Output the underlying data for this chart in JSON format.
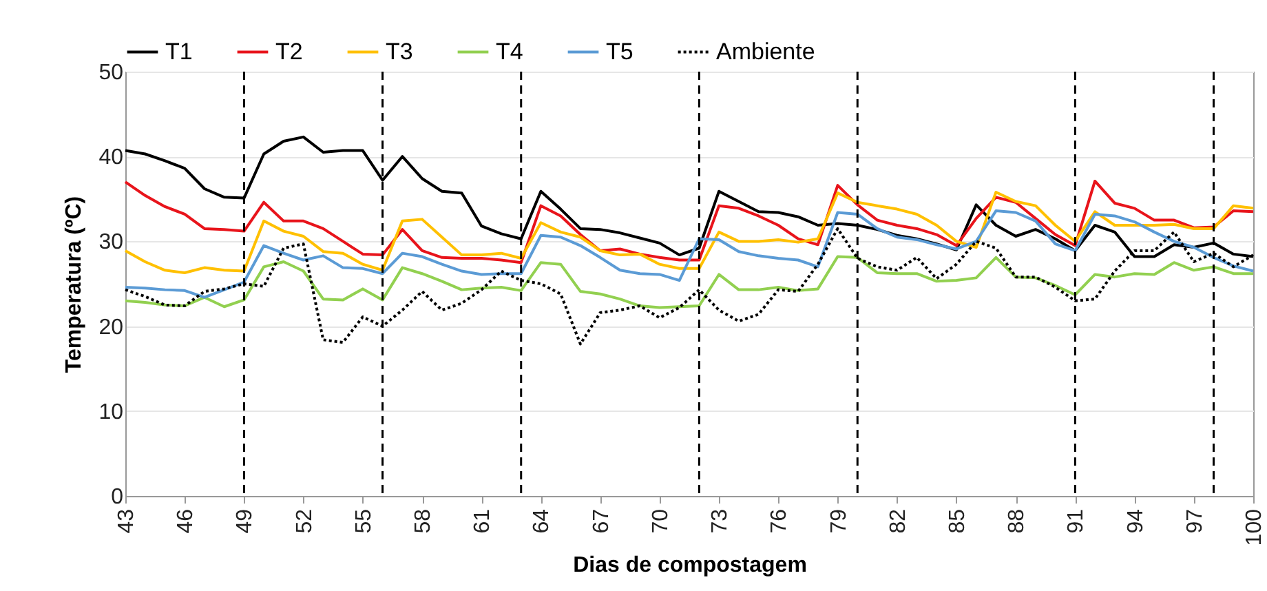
{
  "chart_data": {
    "type": "line",
    "xlabel": "Dias de compostagem",
    "ylabel": "Temperatura (ºC)",
    "x": [
      43,
      44,
      45,
      46,
      47,
      48,
      49,
      50,
      51,
      52,
      53,
      54,
      55,
      56,
      57,
      58,
      59,
      60,
      61,
      62,
      63,
      64,
      65,
      66,
      67,
      68,
      69,
      70,
      71,
      72,
      73,
      74,
      75,
      76,
      77,
      78,
      79,
      80,
      81,
      82,
      83,
      84,
      85,
      86,
      87,
      88,
      89,
      90,
      91,
      92,
      93,
      94,
      95,
      96,
      97,
      98,
      99,
      100
    ],
    "series": [
      {
        "name": "T1",
        "color": "#000000",
        "values": [
          40.7,
          40.3,
          39.5,
          38.6,
          36.2,
          35.2,
          35.1,
          40.3,
          41.8,
          42.3,
          40.5,
          40.7,
          40.7,
          37.2,
          40.0,
          37.4,
          35.9,
          35.7,
          31.8,
          30.9,
          30.3,
          35.9,
          33.8,
          31.5,
          31.4,
          31.0,
          30.4,
          29.8,
          28.4,
          29.2,
          35.9,
          34.7,
          33.5,
          33.4,
          32.9,
          31.9,
          32.1,
          31.9,
          31.4,
          30.7,
          30.3,
          29.7,
          29.0,
          34.3,
          31.9,
          30.6,
          31.4,
          30.3,
          28.9,
          31.9,
          31.1,
          28.2,
          28.2,
          29.6,
          29.3,
          29.8,
          28.5,
          28.2
        ]
      },
      {
        "name": "T2",
        "color": "#e8141b",
        "values": [
          37.0,
          35.4,
          34.1,
          33.2,
          31.5,
          31.4,
          31.2,
          34.6,
          32.4,
          32.4,
          31.5,
          30.0,
          28.5,
          28.4,
          31.4,
          28.9,
          28.1,
          28.0,
          28.0,
          27.8,
          27.5,
          34.2,
          33.0,
          30.8,
          28.9,
          29.1,
          28.5,
          28.1,
          27.8,
          27.8,
          34.2,
          33.9,
          33.0,
          31.9,
          30.3,
          29.6,
          36.6,
          34.3,
          32.5,
          31.9,
          31.5,
          30.8,
          29.5,
          32.7,
          35.2,
          34.6,
          32.7,
          30.8,
          29.5,
          37.1,
          34.5,
          33.9,
          32.5,
          32.5,
          31.6,
          31.7,
          33.6,
          33.5
        ]
      },
      {
        "name": "T3",
        "color": "#ffc000",
        "values": [
          28.9,
          27.6,
          26.6,
          26.3,
          26.9,
          26.6,
          26.5,
          32.4,
          31.2,
          30.6,
          28.8,
          28.6,
          27.3,
          26.6,
          32.4,
          32.6,
          30.5,
          28.4,
          28.4,
          28.6,
          28.0,
          32.2,
          31.1,
          30.5,
          28.9,
          28.4,
          28.5,
          27.3,
          26.8,
          26.8,
          31.1,
          30.0,
          30.0,
          30.2,
          29.9,
          30.3,
          35.7,
          34.6,
          34.2,
          33.8,
          33.2,
          31.9,
          30.0,
          29.3,
          35.8,
          34.7,
          34.2,
          31.9,
          30.0,
          33.5,
          31.9,
          31.9,
          31.9,
          32.0,
          31.5,
          31.5,
          34.2,
          33.9
        ]
      },
      {
        "name": "T4",
        "color": "#92d050",
        "values": [
          23.0,
          22.8,
          22.5,
          22.4,
          23.4,
          22.3,
          23.1,
          27.0,
          27.6,
          26.5,
          23.2,
          23.1,
          24.4,
          23.1,
          26.9,
          26.2,
          25.3,
          24.3,
          24.5,
          24.6,
          24.2,
          27.5,
          27.3,
          24.1,
          23.8,
          23.2,
          22.4,
          22.2,
          22.3,
          22.4,
          26.1,
          24.3,
          24.3,
          24.6,
          24.2,
          24.4,
          28.2,
          28.1,
          26.3,
          26.2,
          26.2,
          25.3,
          25.4,
          25.7,
          28.1,
          25.8,
          25.7,
          24.8,
          23.7,
          26.1,
          25.8,
          26.2,
          26.1,
          27.5,
          26.6,
          27.0,
          26.2,
          26.2
        ]
      },
      {
        "name": "T5",
        "color": "#5b9bd5",
        "values": [
          24.6,
          24.5,
          24.3,
          24.2,
          23.4,
          24.3,
          25.2,
          29.5,
          28.6,
          27.8,
          28.3,
          26.9,
          26.8,
          26.2,
          28.6,
          28.2,
          27.3,
          26.5,
          26.1,
          26.2,
          26.2,
          30.7,
          30.5,
          29.5,
          28.1,
          26.6,
          26.2,
          26.1,
          25.4,
          30.3,
          30.2,
          28.8,
          28.3,
          28.0,
          27.8,
          27.0,
          33.4,
          33.2,
          31.5,
          30.5,
          30.2,
          29.6,
          29.1,
          30.0,
          33.6,
          33.4,
          32.4,
          29.7,
          28.9,
          33.2,
          33.0,
          32.3,
          31.1,
          30.0,
          29.3,
          28.1,
          27.1,
          26.5
        ]
      },
      {
        "name": "Ambiente",
        "color": "#000000",
        "line_style": "dotted",
        "values": [
          24.3,
          23.5,
          22.5,
          22.4,
          24.1,
          24.4,
          25.0,
          24.7,
          29.2,
          29.7,
          18.4,
          18.1,
          21.1,
          20.0,
          21.9,
          24.1,
          21.9,
          22.7,
          24.3,
          26.5,
          25.4,
          25.0,
          23.8,
          17.9,
          21.6,
          21.9,
          22.4,
          21.0,
          22.2,
          24.3,
          21.9,
          20.6,
          21.4,
          24.3,
          24.1,
          27.3,
          31.5,
          28.0,
          27.0,
          26.6,
          28.1,
          25.6,
          27.3,
          30.0,
          29.2,
          25.8,
          25.8,
          24.6,
          23.0,
          23.2,
          26.5,
          28.9,
          28.9,
          31.1,
          27.6,
          28.6,
          27.0,
          28.4
        ]
      }
    ],
    "xlim": [
      43,
      100
    ],
    "xticks": [
      43,
      46,
      49,
      52,
      55,
      58,
      61,
      64,
      67,
      70,
      73,
      76,
      79,
      82,
      85,
      88,
      91,
      94,
      97,
      100
    ],
    "ylim": [
      0,
      50
    ],
    "yticks": [
      0,
      10,
      20,
      30,
      40,
      50
    ],
    "ref_lines": [
      {
        "axis": "x",
        "value": 49,
        "color": "#000000",
        "line_style": "dashed"
      },
      {
        "axis": "x",
        "value": 56,
        "color": "#000000",
        "line_style": "dashed"
      },
      {
        "axis": "x",
        "value": 63,
        "color": "#000000",
        "line_style": "dashed"
      },
      {
        "axis": "x",
        "value": 72,
        "color": "#000000",
        "line_style": "dashed"
      },
      {
        "axis": "x",
        "value": 80,
        "color": "#000000",
        "line_style": "dashed"
      },
      {
        "axis": "x",
        "value": 91,
        "color": "#000000",
        "line_style": "dashed"
      },
      {
        "axis": "x",
        "value": 98,
        "color": "#000000",
        "line_style": "dashed"
      }
    ],
    "grid": "y",
    "legend": "top",
    "line_style": "solid"
  }
}
